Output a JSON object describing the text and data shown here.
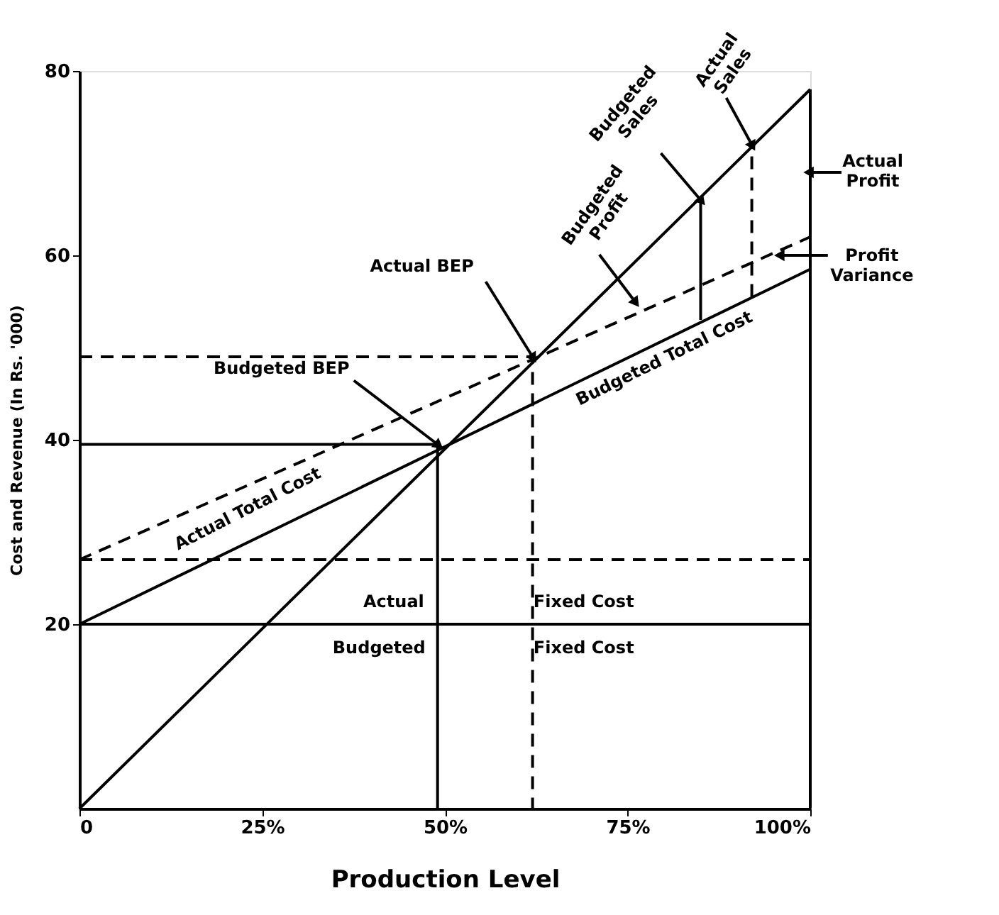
{
  "chart_data": {
    "type": "line",
    "xlabel": "Production Level",
    "ylabel": "Cost and Revenue (In Rs. '000)",
    "xlim": [
      0,
      100
    ],
    "ylim": [
      0,
      80
    ],
    "xticks": [
      0,
      {
        "value": 25,
        "label": "25%"
      },
      {
        "value": 50,
        "label": "50%"
      },
      {
        "value": 75,
        "label": "75%"
      },
      {
        "value": 100,
        "label": "100%"
      }
    ],
    "yticks": [
      20,
      40,
      60,
      80
    ],
    "grid": false,
    "series": [
      {
        "type": "line",
        "x": [
          0,
          100
        ],
        "values": [
          0,
          78
        ],
        "color": "#000000",
        "line_style": "solid"
      },
      {
        "type": "line",
        "x": [
          0,
          100
        ],
        "values": [
          20,
          58.5
        ],
        "color": "#000000",
        "line_style": "solid"
      },
      {
        "type": "line",
        "x": [
          0,
          100
        ],
        "values": [
          27,
          62
        ],
        "color": "#000000",
        "line_style": "dashed"
      },
      {
        "type": "line",
        "x": [
          0,
          100
        ],
        "values": [
          20,
          20
        ],
        "color": "#000000",
        "line_style": "solid"
      },
      {
        "type": "line",
        "x": [
          0,
          100
        ],
        "values": [
          27,
          27
        ],
        "color": "#000000",
        "line_style": "dashed"
      },
      {
        "type": "line",
        "x": [
          0,
          49,
          49
        ],
        "values": [
          39.5,
          39.5,
          0
        ],
        "color": "#000000",
        "line_style": "solid"
      },
      {
        "type": "line",
        "x": [
          0,
          62,
          62
        ],
        "values": [
          49,
          49,
          0
        ],
        "color": "#000000",
        "line_style": "dashed"
      },
      {
        "type": "line",
        "x": [
          85,
          85
        ],
        "values": [
          53,
          66
        ],
        "color": "#000000",
        "line_style": "solid"
      },
      {
        "type": "line",
        "x": [
          92,
          92
        ],
        "values": [
          55.5,
          72
        ],
        "color": "#000000",
        "line_style": "dashed"
      },
      {
        "type": "line",
        "x": [
          100,
          100
        ],
        "values": [
          0,
          78
        ],
        "color": "#000000",
        "line_style": "solid"
      }
    ],
    "annotations": [
      {
        "text": "Actual BEP",
        "x": 62,
        "y": 49
      },
      {
        "text": "Budgeted BEP",
        "x": 49,
        "y": 39.5
      },
      {
        "text": "Budgeted Profit",
        "x": 76,
        "y": 55
      },
      {
        "text": "Budgeted Sales",
        "x": 85,
        "y": 66
      },
      {
        "text": "Actual Sales",
        "x": 92,
        "y": 72
      },
      {
        "text": "Actual Profit",
        "x": 100,
        "y": 69
      },
      {
        "text": "Profit Variance",
        "x": 96,
        "y": 60
      },
      {
        "text": "Budgeted Total Cost",
        "x": 80,
        "y": 51
      },
      {
        "text": "Actual Total Cost",
        "x": 23,
        "y": 35
      },
      "Actual",
      "Fixed Cost",
      "Budgeted",
      "Fixed Cost"
    ]
  }
}
